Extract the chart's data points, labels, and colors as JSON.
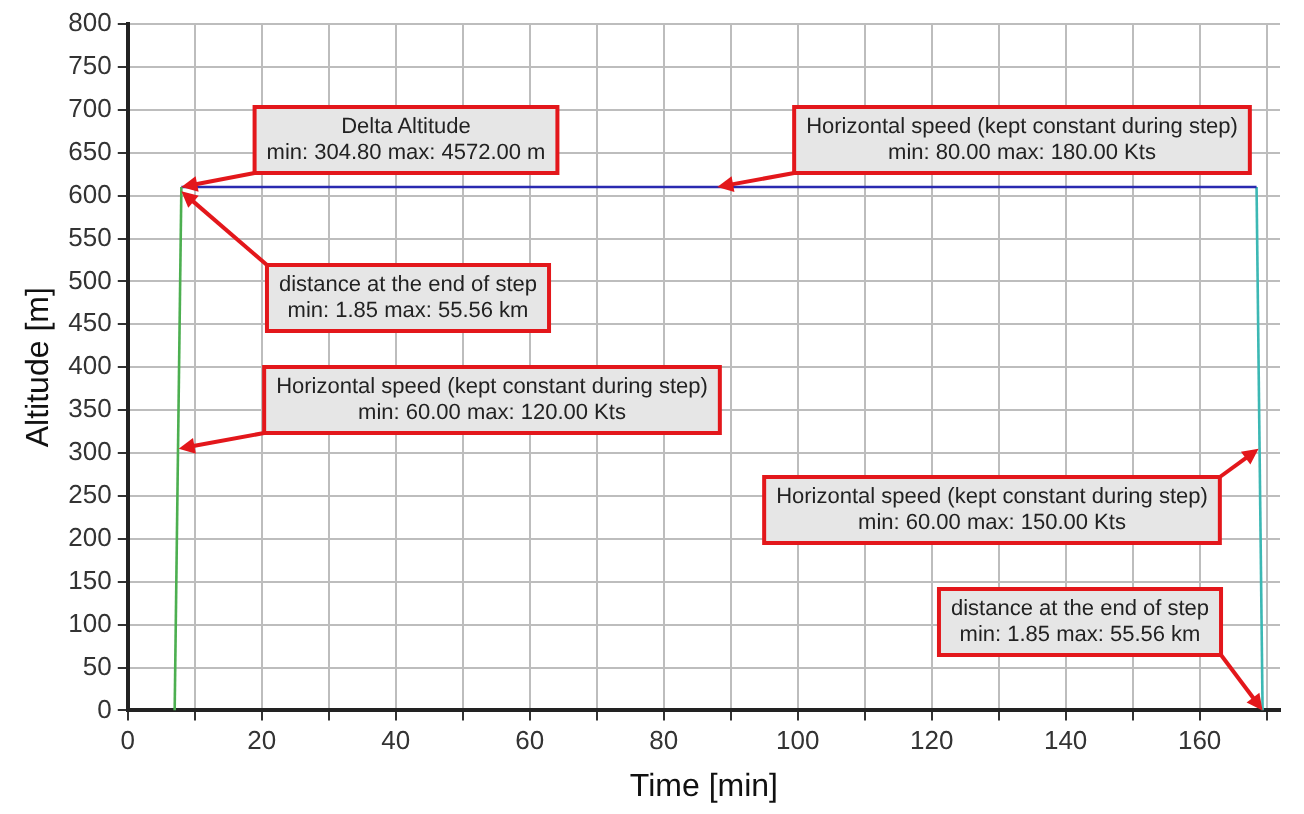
{
  "chart_data": {
    "type": "line",
    "xlabel": "Time [min]",
    "ylabel": "Altitude [m]",
    "series": [
      {
        "color": "#4caf50",
        "x": [
          7,
          8
        ],
        "values": [
          0,
          610
        ]
      },
      {
        "color": "#2a2ab0",
        "x": [
          8,
          168.5
        ],
        "values": [
          610,
          610
        ]
      },
      {
        "color": "#3cb8b4",
        "x": [
          168.5,
          169.4
        ],
        "values": [
          610,
          0
        ]
      }
    ],
    "xlim": [
      0,
      172
    ],
    "xticks": [
      0,
      {
        "value": 10,
        "label": null
      },
      20,
      {
        "value": 30,
        "label": null
      },
      40,
      {
        "value": 50,
        "label": null
      },
      60,
      {
        "value": 70,
        "label": null
      },
      80,
      {
        "value": 90,
        "label": null
      },
      100,
      {
        "value": 110,
        "label": null
      },
      120,
      {
        "value": 130,
        "label": null
      },
      140,
      {
        "value": 150,
        "label": null
      },
      160,
      {
        "value": 170,
        "label": null
      }
    ],
    "ylim": [
      0,
      800
    ],
    "yticks": [
      0,
      50,
      100,
      150,
      200,
      250,
      300,
      350,
      400,
      450,
      500,
      550,
      600,
      650,
      700,
      750,
      800
    ],
    "grid": true,
    "marker": "none",
    "line_style": "solid",
    "annotations": [
      {
        "text": "Delta Altitude\nmin: 304.80 max: 4572.00 m",
        "x": 8,
        "y": 610
      },
      {
        "text": "distance at the end of step\nmin: 1.85 max: 55.56 km",
        "x": 8,
        "y": 605
      },
      {
        "text": "Horizontal speed (kept constant during step)\nmin: 60.00 max: 120.00 Kts",
        "x": 7.6,
        "y": 305
      },
      {
        "text": "Horizontal speed (kept constant during step)\nmin: 80.00 max: 180.00 Kts",
        "x": 88,
        "y": 610
      },
      {
        "text": "Horizontal speed (kept constant during step)\nmin: 60.00 max: 150.00 Kts",
        "x": 168.8,
        "y": 305
      },
      {
        "text": "distance at the end of step\nmin: 1.85 max: 55.56 km",
        "x": 169.4,
        "y": 0
      }
    ]
  }
}
